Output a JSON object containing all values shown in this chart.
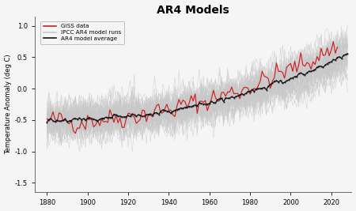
{
  "title": "AR4 Models",
  "ylabel": "Temperature Anomaly (deg C)",
  "xlim": [
    1874,
    2030
  ],
  "ylim": [
    -1.65,
    1.15
  ],
  "xticks": [
    1880,
    1900,
    1920,
    1940,
    1960,
    1980,
    2000,
    2020
  ],
  "yticks": [
    -1.5,
    -1.0,
    -0.5,
    0.0,
    0.5,
    1.0
  ],
  "background_color": "#f5f5f5",
  "model_color": "#c8c8c8",
  "giss_color": "#cc2222",
  "average_color": "#111111",
  "legend_labels": [
    "GISS data",
    "IPCC AR4 model runs",
    "AR4 model average"
  ],
  "n_model_runs": 58,
  "seed": 42,
  "giss_start_year": 1880,
  "giss_end_year": 2023,
  "model_start_year": 1880,
  "model_end_year": 2028
}
